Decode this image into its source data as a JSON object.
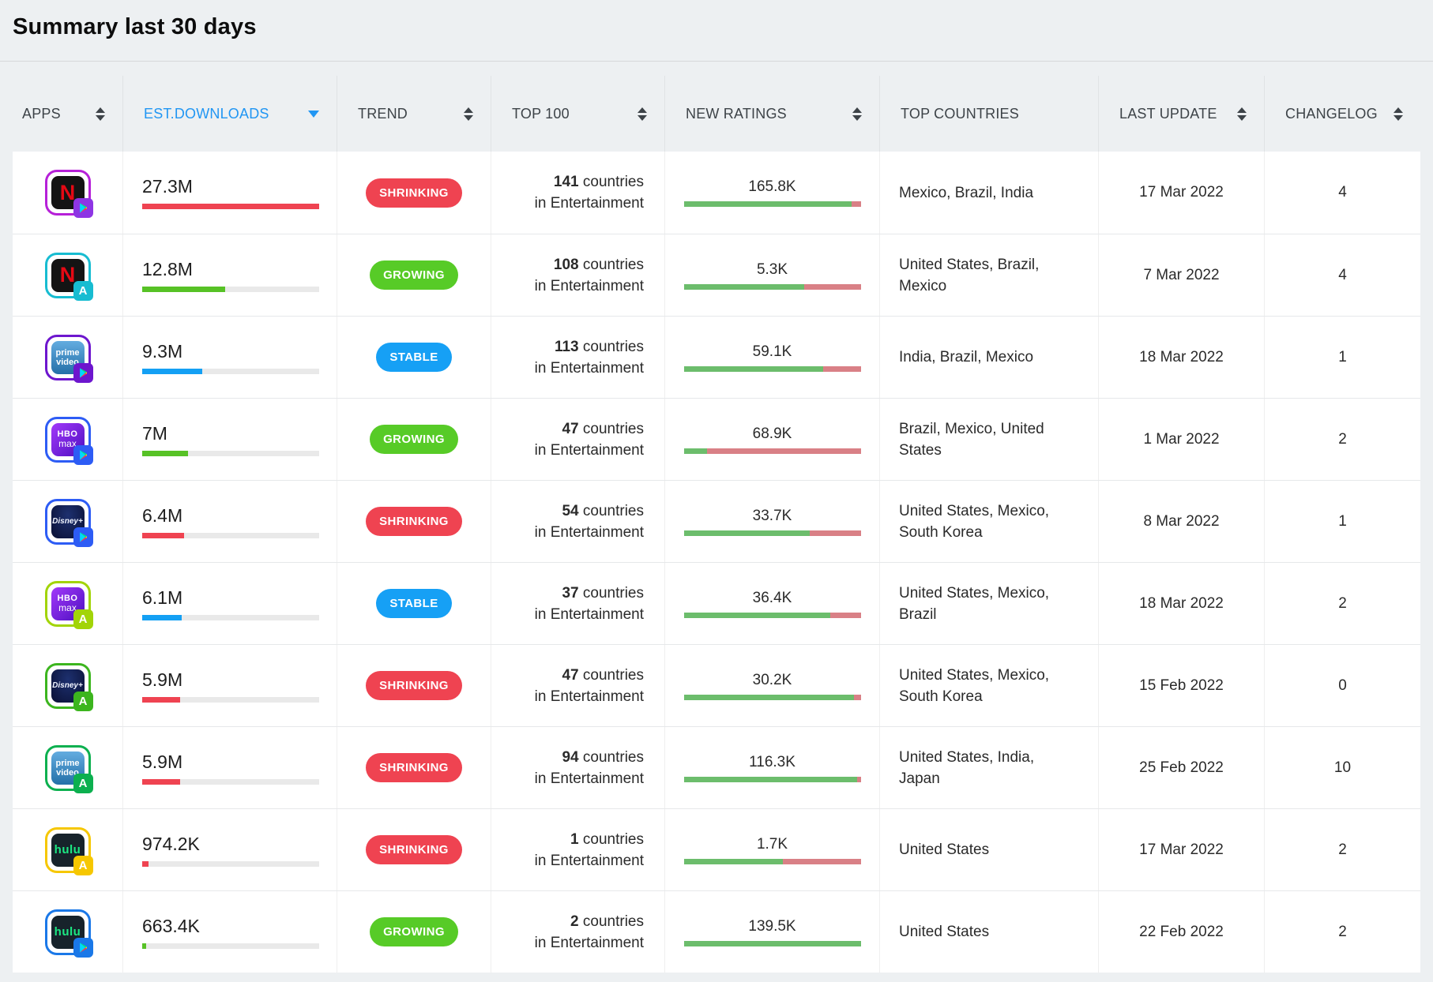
{
  "page": {
    "title": "Summary last 30 days"
  },
  "colors": {
    "accent_blue": "#2196f3",
    "shrinking_red": "#ef4351",
    "growing_green": "#57cb27",
    "stable_blue": "#16a0f5",
    "ratings_green": "#6cbd6c",
    "ratings_red": "#d98086",
    "bar_track_gray": "#e9e9e9"
  },
  "table": {
    "columns": [
      {
        "label": "APPS",
        "sortable": true
      },
      {
        "label": "EST.DOWNLOADS",
        "sortable": true,
        "active": true,
        "sort_dir": "desc"
      },
      {
        "label": "TREND",
        "sortable": true
      },
      {
        "label": "TOP 100",
        "sortable": true
      },
      {
        "label": "NEW RATINGS",
        "sortable": true
      },
      {
        "label": "TOP COUNTRIES",
        "sortable": false
      },
      {
        "label": "LAST UPDATE",
        "sortable": true
      },
      {
        "label": "CHANGELOG",
        "sortable": true
      }
    ],
    "rows": [
      {
        "app": {
          "type": "netflix",
          "store": "google-play",
          "name": "Netflix (Google Play)",
          "border": "#b620d8",
          "badge_bg": "#8e35e4",
          "logo_bg": "#141414",
          "logo_color": "#e50914",
          "logo_line1": "N",
          "logo_line2": ""
        },
        "downloads": {
          "value": "27.3M",
          "pct": 100,
          "color": "#ef4351"
        },
        "trend": {
          "label": "SHRINKING",
          "color": "#ef4351"
        },
        "top100": {
          "count": "141",
          "word": "countries",
          "line2": "in Entertainment"
        },
        "ratings": {
          "value": "165.8K",
          "green_pct": 95
        },
        "countries": "Mexico, Brazil, India",
        "last_update": "17 Mar 2022",
        "changelog": "4"
      },
      {
        "app": {
          "type": "netflix",
          "store": "app-store",
          "name": "Netflix (App Store)",
          "border": "#17bcd1",
          "badge_bg": "#17bcd1",
          "logo_bg": "#141414",
          "logo_color": "#e50914",
          "logo_line1": "N",
          "logo_line2": ""
        },
        "downloads": {
          "value": "12.8M",
          "pct": 47,
          "color": "#57c226"
        },
        "trend": {
          "label": "GROWING",
          "color": "#57cb27"
        },
        "top100": {
          "count": "108",
          "word": "countries",
          "line2": "in Entertainment"
        },
        "ratings": {
          "value": "5.3K",
          "green_pct": 68
        },
        "countries": "United States, Brazil, Mexico",
        "last_update": "7 Mar 2022",
        "changelog": "4"
      },
      {
        "app": {
          "type": "prime",
          "store": "google-play",
          "name": "Prime Video (Google Play)",
          "border": "#6d16ce",
          "badge_bg": "#6d16ce",
          "logo_bg": "linear-gradient(180deg,#63ace0,#2470a8)",
          "logo_color": "#ffffff",
          "logo_line1": "prime",
          "logo_line2": "video"
        },
        "downloads": {
          "value": "9.3M",
          "pct": 34,
          "color": "#14a0f4"
        },
        "trend": {
          "label": "STABLE",
          "color": "#16a0f5"
        },
        "top100": {
          "count": "113",
          "word": "countries",
          "line2": "in Entertainment"
        },
        "ratings": {
          "value": "59.1K",
          "green_pct": 79
        },
        "countries": "India, Brazil, Mexico",
        "last_update": "18 Mar 2022",
        "changelog": "1"
      },
      {
        "app": {
          "type": "hbo",
          "store": "google-play",
          "name": "HBO Max (Google Play)",
          "border": "#2d5cf5",
          "badge_bg": "#2d5cf5",
          "logo_bg": "linear-gradient(135deg,#a239fa,#4d0fc0)",
          "logo_color": "#ffffff",
          "logo_line1": "HBO",
          "logo_line2": "max"
        },
        "downloads": {
          "value": "7M",
          "pct": 26,
          "color": "#57c226"
        },
        "trend": {
          "label": "GROWING",
          "color": "#57cb27"
        },
        "top100": {
          "count": "47",
          "word": "countries",
          "line2": "in Entertainment"
        },
        "ratings": {
          "value": "68.9K",
          "green_pct": 13
        },
        "countries": "Brazil, Mexico, United States",
        "last_update": "1 Mar 2022",
        "changelog": "2"
      },
      {
        "app": {
          "type": "disney",
          "store": "google-play",
          "name": "Disney+ (Google Play)",
          "border": "#2d5cf5",
          "badge_bg": "#2d5cf5",
          "logo_bg": "radial-gradient(ellipse at 50% 30%,#1d306f,#0a1034)",
          "logo_color": "#f0f4ff",
          "logo_line1": "Disney+",
          "logo_line2": ""
        },
        "downloads": {
          "value": "6.4M",
          "pct": 23.5,
          "color": "#ef4351"
        },
        "trend": {
          "label": "SHRINKING",
          "color": "#ef4351"
        },
        "top100": {
          "count": "54",
          "word": "countries",
          "line2": "in Entertainment"
        },
        "ratings": {
          "value": "33.7K",
          "green_pct": 71
        },
        "countries": "United States, Mexico, South Korea",
        "last_update": "8 Mar 2022",
        "changelog": "1"
      },
      {
        "app": {
          "type": "hbo",
          "store": "app-store",
          "name": "HBO Max (App Store)",
          "border": "#a2d408",
          "badge_bg": "#a2d408",
          "logo_bg": "linear-gradient(135deg,#a239fa,#4d0fc0)",
          "logo_color": "#ffffff",
          "logo_line1": "HBO",
          "logo_line2": "max"
        },
        "downloads": {
          "value": "6.1M",
          "pct": 22.5,
          "color": "#14a0f4"
        },
        "trend": {
          "label": "STABLE",
          "color": "#16a0f5"
        },
        "top100": {
          "count": "37",
          "word": "countries",
          "line2": "in Entertainment"
        },
        "ratings": {
          "value": "36.4K",
          "green_pct": 83
        },
        "countries": "United States, Mexico, Brazil",
        "last_update": "18 Mar 2022",
        "changelog": "2"
      },
      {
        "app": {
          "type": "disney",
          "store": "app-store",
          "name": "Disney+ (App Store)",
          "border": "#3cb51e",
          "badge_bg": "#3cb51e",
          "logo_bg": "radial-gradient(ellipse at 50% 30%,#1d306f,#0a1034)",
          "logo_color": "#f0f4ff",
          "logo_line1": "Disney+",
          "logo_line2": ""
        },
        "downloads": {
          "value": "5.9M",
          "pct": 21.5,
          "color": "#ef4351"
        },
        "trend": {
          "label": "SHRINKING",
          "color": "#ef4351"
        },
        "top100": {
          "count": "47",
          "word": "countries",
          "line2": "in Entertainment"
        },
        "ratings": {
          "value": "30.2K",
          "green_pct": 96
        },
        "countries": "United States, Mexico, South Korea",
        "last_update": "15 Feb 2022",
        "changelog": "0"
      },
      {
        "app": {
          "type": "prime",
          "store": "app-store",
          "name": "Prime Video (App Store)",
          "border": "#0cb04f",
          "badge_bg": "#0cb04f",
          "logo_bg": "linear-gradient(180deg,#63ace0,#2470a8)",
          "logo_color": "#ffffff",
          "logo_line1": "prime",
          "logo_line2": "video"
        },
        "downloads": {
          "value": "5.9M",
          "pct": 21.5,
          "color": "#ef4351"
        },
        "trend": {
          "label": "SHRINKING",
          "color": "#ef4351"
        },
        "top100": {
          "count": "94",
          "word": "countries",
          "line2": "in Entertainment"
        },
        "ratings": {
          "value": "116.3K",
          "green_pct": 98
        },
        "countries": "United States, India, Japan",
        "last_update": "25 Feb 2022",
        "changelog": "10"
      },
      {
        "app": {
          "type": "hulu",
          "store": "app-store",
          "name": "Hulu (App Store)",
          "border": "#f6c700",
          "badge_bg": "#f6c700",
          "logo_bg": "#17232b",
          "logo_color": "#1ce783",
          "logo_line1": "hulu",
          "logo_line2": ""
        },
        "downloads": {
          "value": "974.2K",
          "pct": 3.6,
          "color": "#ef4351"
        },
        "trend": {
          "label": "SHRINKING",
          "color": "#ef4351"
        },
        "top100": {
          "count": "1",
          "word": "countries",
          "line2": "in Entertainment"
        },
        "ratings": {
          "value": "1.7K",
          "green_pct": 56
        },
        "countries": "United States",
        "last_update": "17 Mar 2022",
        "changelog": "2"
      },
      {
        "app": {
          "type": "hulu",
          "store": "google-play",
          "name": "Hulu (Google Play)",
          "border": "#1a78e8",
          "badge_bg": "#1a78e8",
          "logo_bg": "#17232b",
          "logo_color": "#1ce783",
          "logo_line1": "hulu",
          "logo_line2": ""
        },
        "downloads": {
          "value": "663.4K",
          "pct": 2.4,
          "color": "#57c226"
        },
        "trend": {
          "label": "GROWING",
          "color": "#57cb27"
        },
        "top100": {
          "count": "2",
          "word": "countries",
          "line2": "in Entertainment"
        },
        "ratings": {
          "value": "139.5K",
          "green_pct": 100
        },
        "countries": "United States",
        "last_update": "22 Feb 2022",
        "changelog": "2"
      }
    ]
  }
}
